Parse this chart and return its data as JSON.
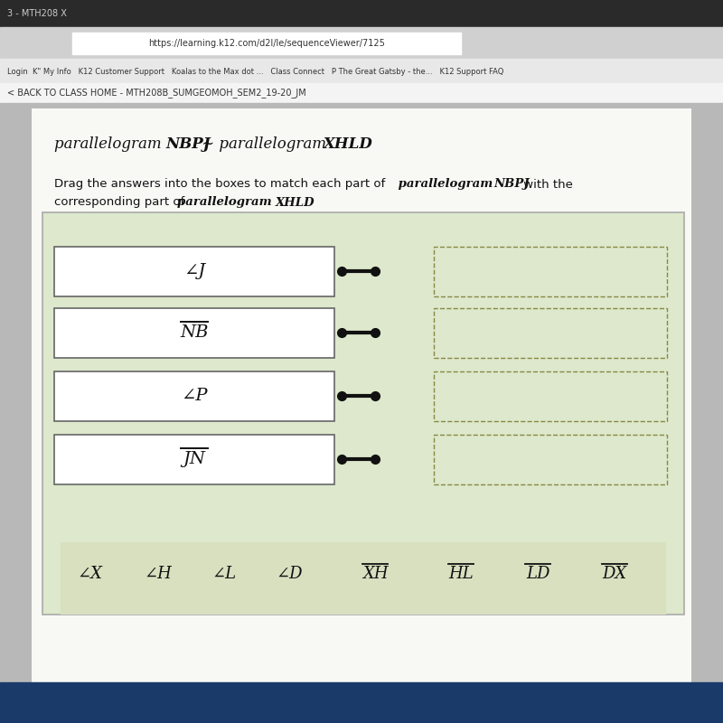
{
  "browser_tab_color": "#3a3a3a",
  "browser_bar_color": "#d8d8d8",
  "browser_bookmarks_color": "#e8e8e8",
  "nav_bar_color": "#f0f0f0",
  "page_bg": "#cccccc",
  "content_bg": "#f7f7f2",
  "content_card_bg": "#ffffff",
  "outer_box_bg": "#eeeedd",
  "outer_box_border": "#aaaaaa",
  "left_box_bg": "#ffffff",
  "left_box_border": "#777777",
  "right_box_border": "#999966",
  "connector_color": "#111111",
  "dot_color": "#111111",
  "answer_area_bg": "#e8e8d4",
  "title_text": "parallelogram NBPJ ∼ parallelogram XHLD",
  "instruction_plain1": "Drag the answers into the boxes to match each part of ",
  "instruction_bold1": "parallelogram NBPJ",
  "instruction_plain1b": " with the",
  "instruction_plain2": "corresponding part of ",
  "instruction_bold2": "parallelogram XHLD",
  "instruction_plain2b": ".",
  "left_labels": [
    "∠J",
    "NB",
    "∠P",
    "JN"
  ],
  "left_overline": [
    false,
    true,
    false,
    true
  ],
  "answer_choices": [
    "∠X",
    "∠H",
    "∠L",
    "∠D",
    "XH",
    "HL",
    "LD",
    "DX"
  ],
  "answer_overlines": [
    false,
    false,
    false,
    false,
    true,
    true,
    true,
    true
  ],
  "tab_text": "3 - MTH208 X",
  "url_text": "https://learning.k12.com/d2l/le/sequenceViewer/7125",
  "nav_text": "< BACK TO CLASS HOME - MTH208B_SUMGEOMOH_SEM2_19-20_JM"
}
